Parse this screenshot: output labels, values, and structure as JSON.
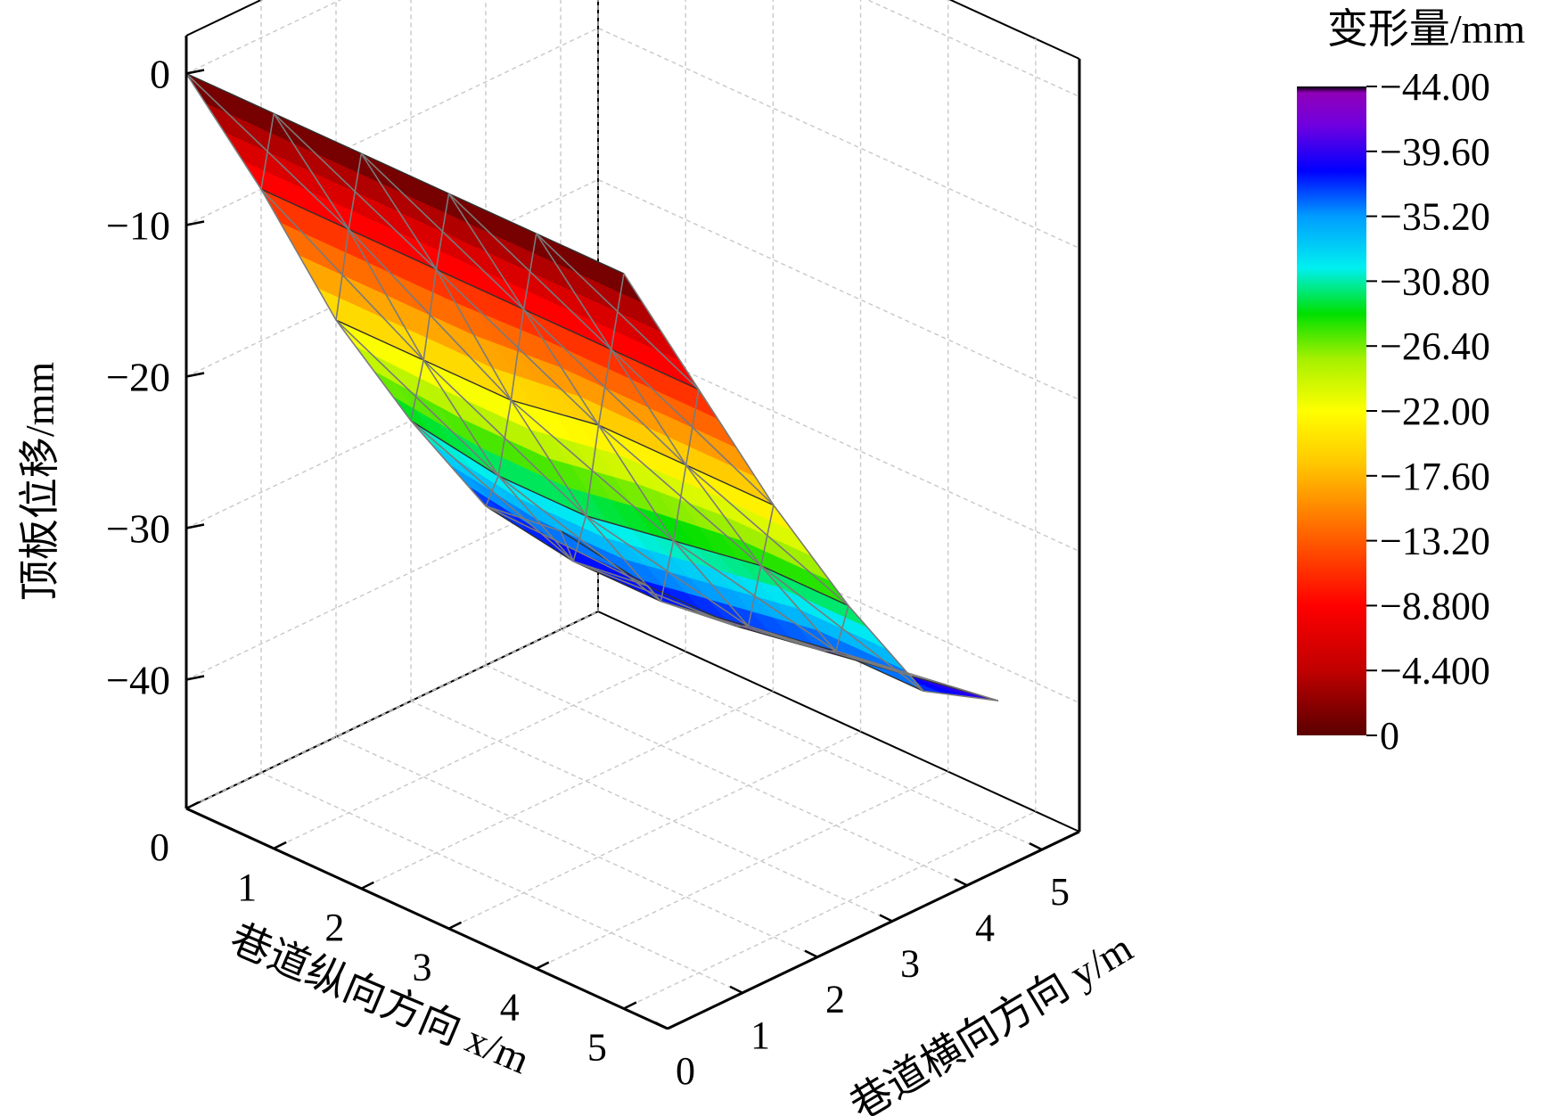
{
  "chart_data": {
    "type": "surface3d",
    "title": "",
    "xlabel": "巷道纵向方向 x/m",
    "ylabel": "巷道横向方向 y/m",
    "zlabel": "顶板位移/mm",
    "colorbar_title": "变形量/mm",
    "x_ticks": [
      "0",
      "1",
      "2",
      "3",
      "4",
      "5"
    ],
    "y_ticks": [
      "0",
      "1",
      "2",
      "3",
      "4",
      "5"
    ],
    "z_ticks": [
      "0",
      "-10",
      "-20",
      "-30",
      "-40"
    ],
    "colorbar_ticks": [
      "-44.00",
      "-39.60",
      "-35.20",
      "-30.80",
      "-26.40",
      "-22.00",
      "-17.60",
      "-13.20",
      "-8.800",
      "-4.400",
      "0"
    ],
    "xlim": [
      0,
      5.5
    ],
    "ylim": [
      0,
      5.5
    ],
    "zlim": [
      -44,
      0
    ],
    "colormap": "spectral rainbow: 0 = dark red, -44 = violet/black",
    "x": [
      0,
      1,
      2,
      3,
      4,
      5
    ],
    "y": [
      0,
      1,
      2,
      3,
      4,
      5
    ],
    "z": [
      [
        0,
        -10,
        -21,
        -30,
        -38,
        -42
      ],
      [
        0,
        -10,
        -21,
        -31,
        -39,
        -43
      ],
      [
        0,
        -10,
        -21,
        -31,
        -39,
        -43
      ],
      [
        0,
        -10,
        -20,
        -30,
        -38,
        -42
      ],
      [
        0,
        -10,
        -20,
        -29,
        -37,
        -41
      ],
      [
        0,
        -10,
        -20,
        -29,
        -37,
        -40
      ]
    ]
  }
}
